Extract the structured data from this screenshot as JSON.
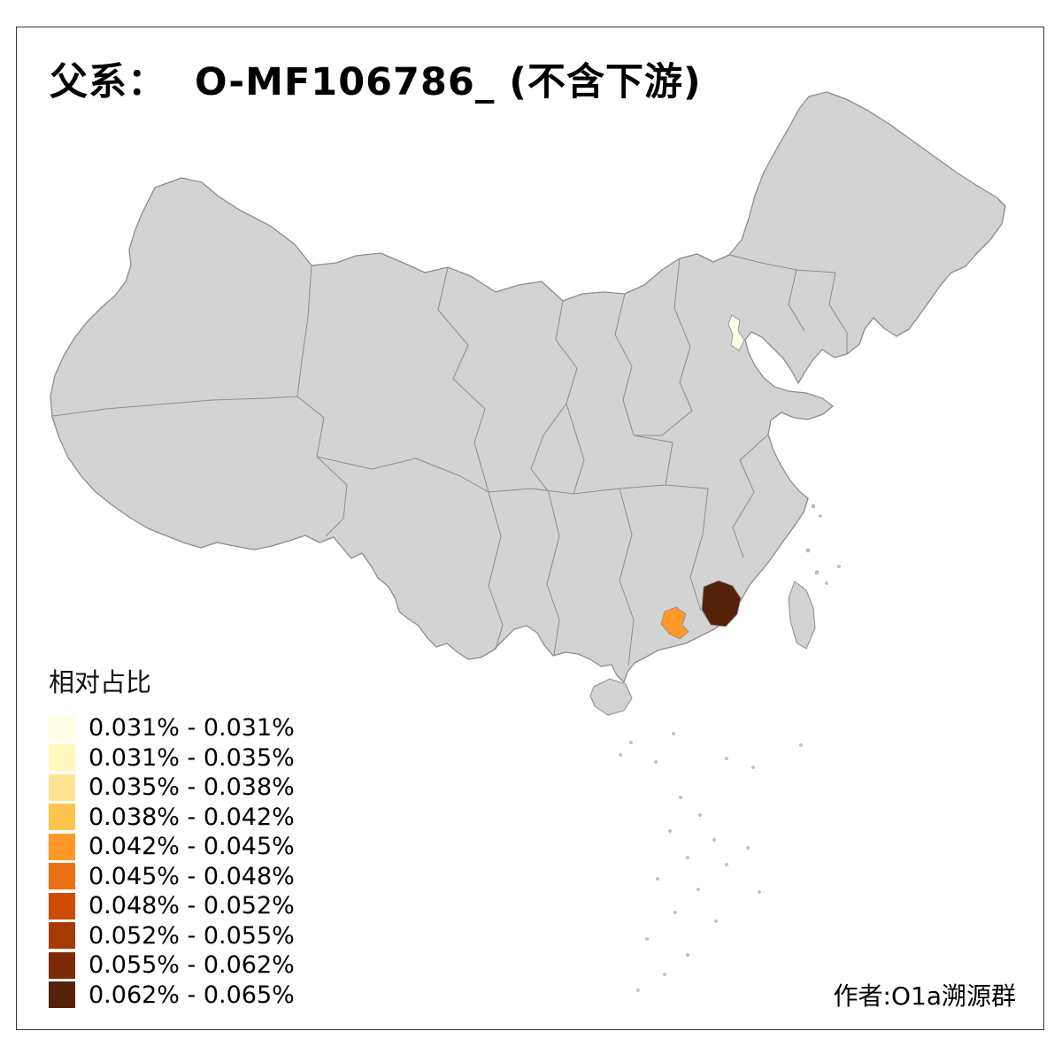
{
  "title": "父系：  O-MF106786_ (不含下游)",
  "attribution": "作者:O1a溯源群",
  "legend": {
    "title": "相对占比",
    "items": [
      {
        "label": "0.031% - 0.031%",
        "color": "#FFFFE5"
      },
      {
        "label": "0.031% - 0.035%",
        "color": "#FFF7BC"
      },
      {
        "label": "0.035% - 0.038%",
        "color": "#FEE391"
      },
      {
        "label": "0.038% - 0.042%",
        "color": "#FEC44F"
      },
      {
        "label": "0.042% - 0.045%",
        "color": "#FE9929"
      },
      {
        "label": "0.045% - 0.048%",
        "color": "#EC7014"
      },
      {
        "label": "0.048% - 0.052%",
        "color": "#CC4C02"
      },
      {
        "label": "0.052% - 0.055%",
        "color": "#A63A03"
      },
      {
        "label": "0.055% - 0.062%",
        "color": "#7C2B06"
      },
      {
        "label": "0.062% - 0.065%",
        "color": "#55210B"
      }
    ]
  },
  "map": {
    "base_fill": "#D3D3D3",
    "border_color": "#8C8C8C",
    "background": "#FFFFFF",
    "regions": [
      {
        "name": "north-china-coastal-region",
        "color": "#FFFFE5",
        "bin": "0.031% - 0.031%"
      },
      {
        "name": "pearl-river-delta-region",
        "color": "#FE9929",
        "bin": "0.042% - 0.045%"
      },
      {
        "name": "east-guangdong-region",
        "color": "#55210B",
        "bin": "0.062% - 0.065%"
      }
    ]
  }
}
